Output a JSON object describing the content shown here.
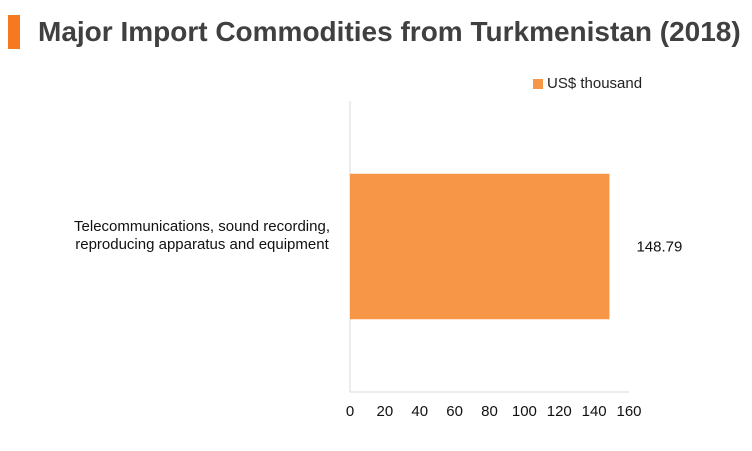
{
  "chart_data": {
    "type": "bar",
    "orientation": "horizontal",
    "title": "Major Import Commodities from Turkmenistan (2018)",
    "categories": [
      "Telecommunications, sound recording, reproducing apparatus and equipment"
    ],
    "series": [
      {
        "name": "US$ thousand",
        "values": [
          148.79
        ],
        "color": "#f79646"
      }
    ],
    "data_labels": [
      "148.79"
    ],
    "xlim": [
      0,
      160
    ],
    "xticks": [
      0,
      20,
      40,
      60,
      80,
      100,
      120,
      140,
      160
    ],
    "xlabel": "",
    "ylabel": "",
    "grid": false,
    "legend": "top-right"
  },
  "accent_color": "#f47920"
}
